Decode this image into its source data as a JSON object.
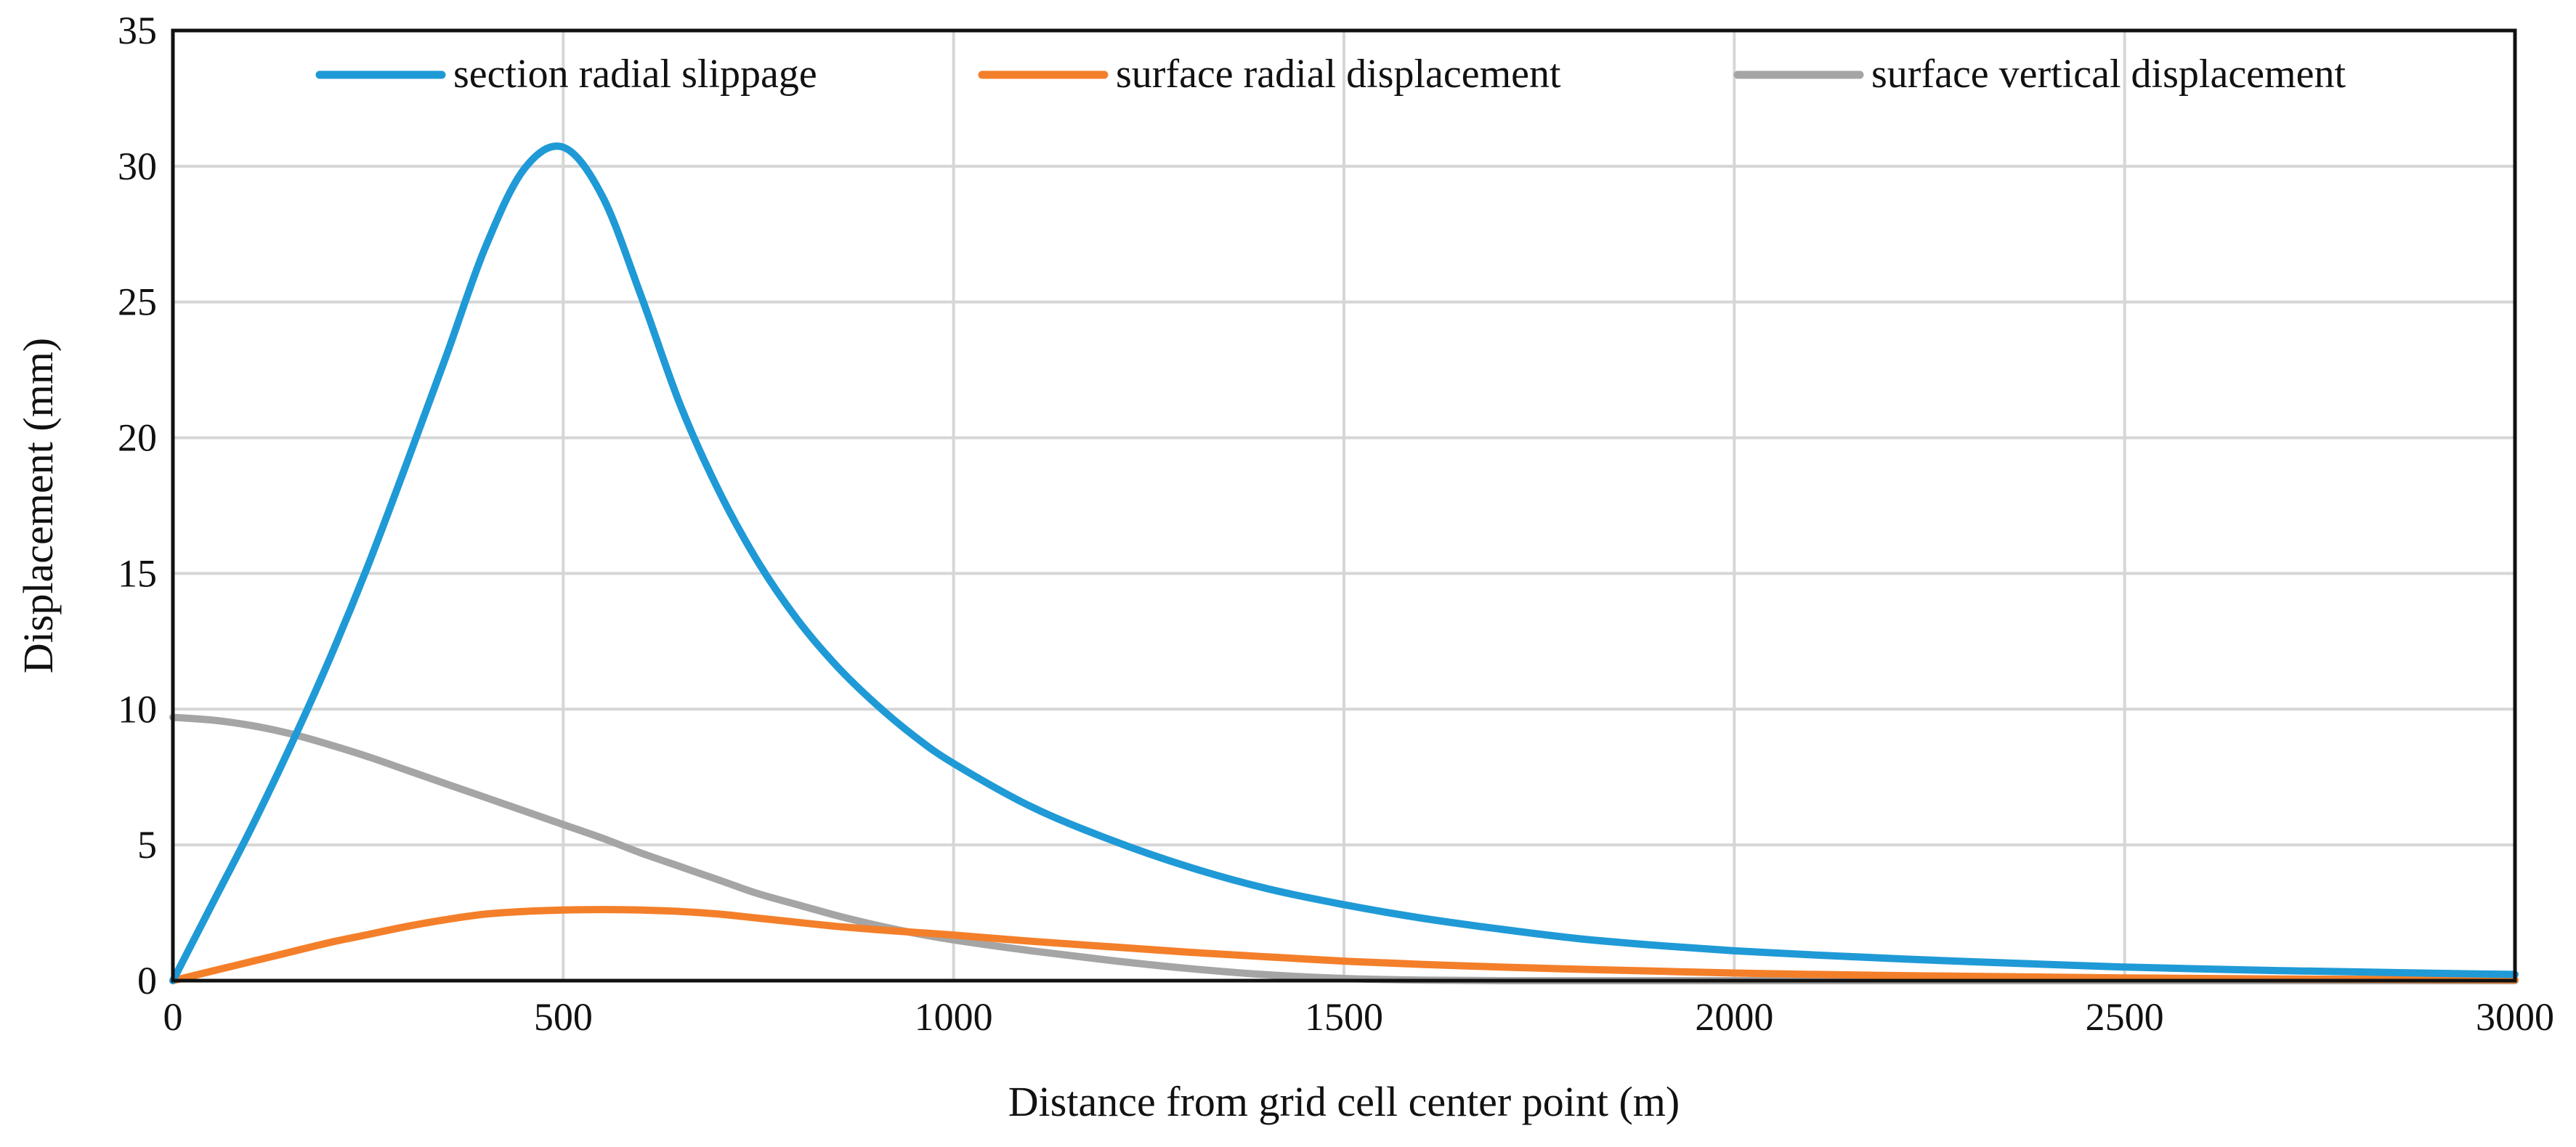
{
  "chart_data": {
    "type": "line",
    "title": "",
    "xlabel": "Distance from grid cell center point (m)",
    "ylabel": "Displacement (mm)",
    "xlim": [
      0,
      3000
    ],
    "ylim": [
      0,
      35
    ],
    "xticks": [
      0,
      500,
      1000,
      1500,
      2000,
      2500,
      3000
    ],
    "yticks": [
      0,
      5,
      10,
      15,
      20,
      25,
      30,
      35
    ],
    "xtick_labels": [
      "0",
      "500",
      "1000",
      "1500",
      "2000",
      "2500",
      "3000"
    ],
    "ytick_labels": [
      "0",
      "5",
      "10",
      "15",
      "20",
      "25",
      "30",
      "35"
    ],
    "grid": true,
    "legend_position": "top",
    "series": [
      {
        "name": "section radial slippage",
        "color": "#1f9ad6",
        "x": [
          0,
          50,
          100,
          150,
          200,
          250,
          300,
          350,
          400,
          450,
          500,
          550,
          600,
          650,
          700,
          750,
          800,
          850,
          900,
          950,
          1000,
          1100,
          1200,
          1300,
          1400,
          1500,
          1600,
          1700,
          1800,
          1900,
          2000,
          2100,
          2200,
          2300,
          2400,
          2500,
          2600,
          2700,
          2800,
          2900,
          3000
        ],
        "y": [
          0,
          2.8,
          5.6,
          8.6,
          11.8,
          15.3,
          19.1,
          23.0,
          27.0,
          29.9,
          30.7,
          28.9,
          25.2,
          21.2,
          18.0,
          15.4,
          13.3,
          11.6,
          10.2,
          9.0,
          8.0,
          6.4,
          5.2,
          4.2,
          3.4,
          2.8,
          2.3,
          1.9,
          1.55,
          1.3,
          1.1,
          0.95,
          0.82,
          0.7,
          0.6,
          0.5,
          0.43,
          0.37,
          0.32,
          0.27,
          0.23
        ]
      },
      {
        "name": "surface radial displacement",
        "color": "#f47f2a",
        "x": [
          0,
          50,
          100,
          150,
          200,
          250,
          300,
          350,
          400,
          450,
          500,
          550,
          600,
          650,
          700,
          750,
          800,
          850,
          900,
          950,
          1000,
          1100,
          1200,
          1300,
          1400,
          1500,
          1600,
          1700,
          1800,
          1900,
          2000,
          2100,
          2200,
          2300,
          2400,
          2500,
          2600,
          2700,
          2800,
          2900,
          3000
        ],
        "y": [
          0,
          0.35,
          0.7,
          1.05,
          1.4,
          1.7,
          2.0,
          2.25,
          2.45,
          2.55,
          2.6,
          2.62,
          2.6,
          2.55,
          2.45,
          2.3,
          2.15,
          2.0,
          1.88,
          1.78,
          1.68,
          1.45,
          1.25,
          1.05,
          0.88,
          0.72,
          0.6,
          0.5,
          0.42,
          0.35,
          0.28,
          0.23,
          0.19,
          0.16,
          0.13,
          0.1,
          0.08,
          0.06,
          0.05,
          0.04,
          0.03
        ]
      },
      {
        "name": "surface vertical displacement",
        "color": "#a5a5a5",
        "x": [
          0,
          50,
          100,
          150,
          200,
          250,
          300,
          350,
          400,
          450,
          500,
          550,
          600,
          650,
          700,
          750,
          800,
          850,
          900,
          950,
          1000,
          1100,
          1200,
          1300,
          1400,
          1500,
          1600,
          1700,
          1800,
          1900,
          2000,
          2100,
          2200,
          2300,
          2400,
          2500,
          2600,
          2700,
          2800,
          2900,
          3000
        ],
        "y": [
          9.7,
          9.6,
          9.4,
          9.1,
          8.7,
          8.25,
          7.75,
          7.25,
          6.75,
          6.25,
          5.75,
          5.25,
          4.7,
          4.2,
          3.7,
          3.2,
          2.8,
          2.4,
          2.05,
          1.75,
          1.5,
          1.1,
          0.75,
          0.45,
          0.22,
          0.08,
          0.02,
          0.0,
          0.0,
          0.0,
          0.0,
          0.0,
          0.0,
          0.0,
          0.0,
          0.0,
          0.0,
          0.0,
          0.0,
          0.0,
          0.0
        ]
      }
    ]
  }
}
